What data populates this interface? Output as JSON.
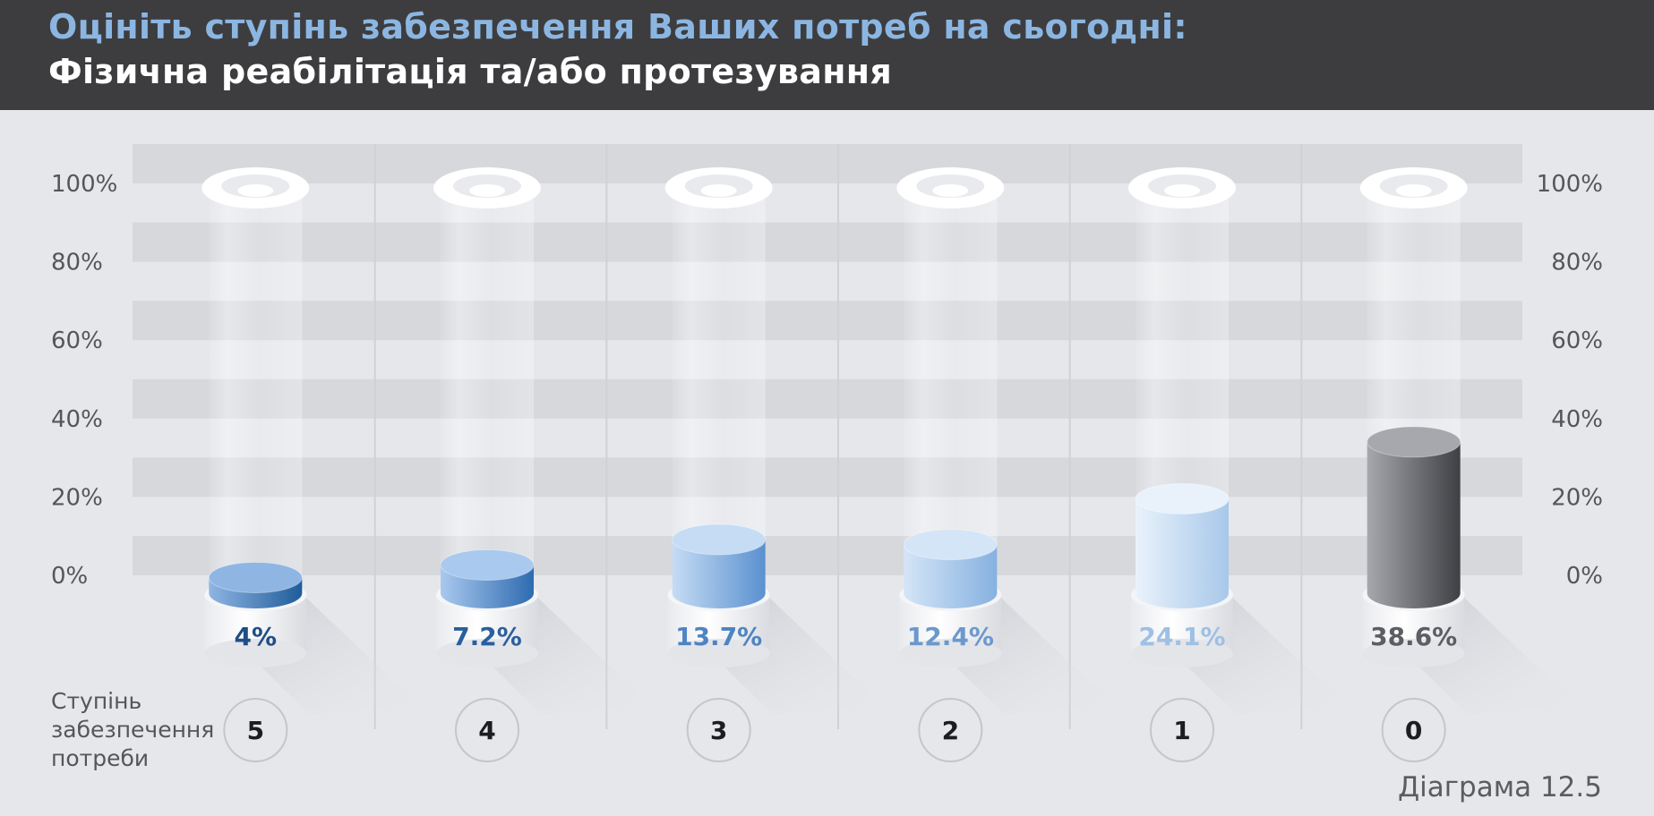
{
  "header": {
    "question": "Оцініть ступінь забезпечення Ваших потреб на сьогодні:",
    "topic": "Фізична реабілітація та/або протезування"
  },
  "x_axis_title": [
    "Ступінь",
    "забезпечення",
    "потреби"
  ],
  "figure_caption": "Діаграма 12.5",
  "colors": {
    "header_bg": "#3d3d3f",
    "question_text": "#8cb6e2",
    "background": "#e6e7eb",
    "band": "#d6d8dc"
  },
  "chart_data": {
    "type": "bar",
    "categories": [
      "5",
      "4",
      "3",
      "2",
      "1",
      "0"
    ],
    "values": [
      4,
      7.2,
      13.7,
      12.4,
      24.1,
      38.6
    ],
    "value_labels": [
      "4%",
      "7.2%",
      "13.7%",
      "12.4%",
      "24.1%",
      "38.6%"
    ],
    "yticks": [
      "0%",
      "20%",
      "40%",
      "60%",
      "80%",
      "100%"
    ],
    "ylim": [
      0,
      100
    ],
    "bar_colors": [
      {
        "light": "#8fb5e3",
        "dark": "#1f5c99",
        "label": "#1f4e85"
      },
      {
        "light": "#a9c9ee",
        "dark": "#2e6bb0",
        "label": "#2a5f9e"
      },
      {
        "light": "#c5dcf4",
        "dark": "#5b91d0",
        "label": "#4d84c3"
      },
      {
        "light": "#d4e5f7",
        "dark": "#86b1e0",
        "label": "#6b98cd"
      },
      {
        "light": "#e9f2fb",
        "dark": "#a8c8ea",
        "label": "#9ec0e4"
      },
      {
        "light": "#a6a8ad",
        "dark": "#3e4044",
        "label": "#5c5e63"
      }
    ]
  }
}
